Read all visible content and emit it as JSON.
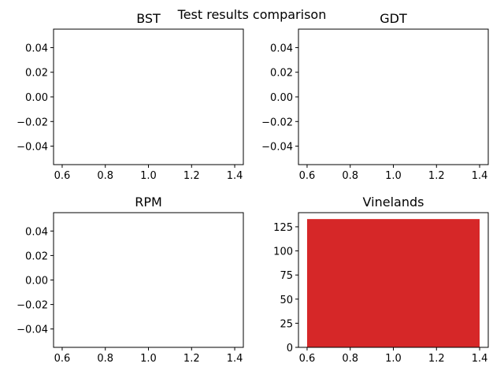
{
  "figure": {
    "title": "Test results comparison"
  },
  "chart_data": [
    {
      "type": "bar",
      "title": "BST",
      "x": [],
      "values": [],
      "xlim": [
        0.56,
        1.44
      ],
      "ylim": [
        -0.055,
        0.055
      ],
      "xticks": [
        0.6,
        0.8,
        1.0,
        1.2,
        1.4
      ],
      "yticks": [
        -0.04,
        -0.02,
        0.0,
        0.02,
        0.04
      ],
      "xtick_labels": [
        "0.6",
        "0.8",
        "1.0",
        "1.2",
        "1.4"
      ],
      "ytick_labels": [
        "−0.04",
        "−0.02",
        "0.00",
        "0.02",
        "0.04"
      ],
      "color": "#d62728",
      "grid": false
    },
    {
      "type": "bar",
      "title": "GDT",
      "x": [],
      "values": [],
      "xlim": [
        0.56,
        1.44
      ],
      "ylim": [
        -0.055,
        0.055
      ],
      "xticks": [
        0.6,
        0.8,
        1.0,
        1.2,
        1.4
      ],
      "yticks": [
        -0.04,
        -0.02,
        0.0,
        0.02,
        0.04
      ],
      "xtick_labels": [
        "0.6",
        "0.8",
        "1.0",
        "1.2",
        "1.4"
      ],
      "ytick_labels": [
        "−0.04",
        "−0.02",
        "0.00",
        "0.02",
        "0.04"
      ],
      "color": "#d62728",
      "grid": false
    },
    {
      "type": "bar",
      "title": "RPM",
      "x": [],
      "values": [],
      "xlim": [
        0.56,
        1.44
      ],
      "ylim": [
        -0.055,
        0.055
      ],
      "xticks": [
        0.6,
        0.8,
        1.0,
        1.2,
        1.4
      ],
      "yticks": [
        -0.04,
        -0.02,
        0.0,
        0.02,
        0.04
      ],
      "xtick_labels": [
        "0.6",
        "0.8",
        "1.0",
        "1.2",
        "1.4"
      ],
      "ytick_labels": [
        "−0.04",
        "−0.02",
        "0.00",
        "0.02",
        "0.04"
      ],
      "color": "#d62728",
      "grid": false
    },
    {
      "type": "bar",
      "title": "Vinelands",
      "x": [
        1.0
      ],
      "bar_width": 0.8,
      "values": [
        133
      ],
      "xlim": [
        0.56,
        1.44
      ],
      "ylim": [
        0,
        139.65
      ],
      "xticks": [
        0.6,
        0.8,
        1.0,
        1.2,
        1.4
      ],
      "yticks": [
        0,
        25,
        50,
        75,
        100,
        125
      ],
      "xtick_labels": [
        "0.6",
        "0.8",
        "1.0",
        "1.2",
        "1.4"
      ],
      "ytick_labels": [
        "0",
        "25",
        "50",
        "75",
        "100",
        "125"
      ],
      "color": "#d62728",
      "grid": false
    }
  ]
}
